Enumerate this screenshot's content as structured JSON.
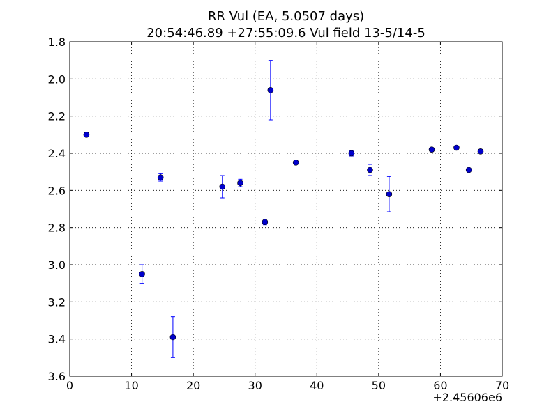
{
  "chart_data": {
    "type": "scatter",
    "title_line1": "RR Vul (EA, 5.0507 days)",
    "title_line2": "20:54:46.89 +27:55:09.6 Vul field 13-5/14-5",
    "xlabel": "",
    "ylabel": "",
    "x_offset_label": "+2.45606e6",
    "xlim": [
      0,
      70
    ],
    "ylim": [
      3.6,
      1.8
    ],
    "y_inverted": true,
    "x_ticks": [
      0,
      10,
      20,
      30,
      40,
      50,
      60,
      70
    ],
    "y_ticks": [
      1.8,
      2.0,
      2.2,
      2.4,
      2.6,
      2.8,
      3.0,
      3.2,
      3.4,
      3.6
    ],
    "x_tick_labels": [
      "0",
      "10",
      "20",
      "30",
      "40",
      "50",
      "60",
      "70"
    ],
    "y_tick_labels": [
      "1.8",
      "2.0",
      "2.2",
      "2.4",
      "2.6",
      "2.8",
      "3.0",
      "3.2",
      "3.4",
      "3.6"
    ],
    "grid": true,
    "marker_color": "#0000cc",
    "errorbar_color": "#0000ff",
    "points": [
      {
        "x": 2.7,
        "y": 2.3,
        "err": 0.01
      },
      {
        "x": 11.7,
        "y": 3.05,
        "err": 0.05
      },
      {
        "x": 14.7,
        "y": 2.53,
        "err": 0.02
      },
      {
        "x": 16.7,
        "y": 3.39,
        "err": 0.11
      },
      {
        "x": 24.7,
        "y": 2.58,
        "err": 0.06
      },
      {
        "x": 27.6,
        "y": 2.56,
        "err": 0.02
      },
      {
        "x": 31.6,
        "y": 2.77,
        "err": 0.015
      },
      {
        "x": 32.5,
        "y": 2.06,
        "err": 0.16
      },
      {
        "x": 36.6,
        "y": 2.45,
        "err": 0.01
      },
      {
        "x": 45.6,
        "y": 2.4,
        "err": 0.015
      },
      {
        "x": 48.6,
        "y": 2.49,
        "err": 0.03
      },
      {
        "x": 51.7,
        "y": 2.62,
        "err": 0.095
      },
      {
        "x": 58.6,
        "y": 2.38,
        "err": 0.01
      },
      {
        "x": 62.6,
        "y": 2.37,
        "err": 0.01
      },
      {
        "x": 64.6,
        "y": 2.49,
        "err": 0.01
      },
      {
        "x": 66.5,
        "y": 2.39,
        "err": 0.01
      }
    ]
  }
}
